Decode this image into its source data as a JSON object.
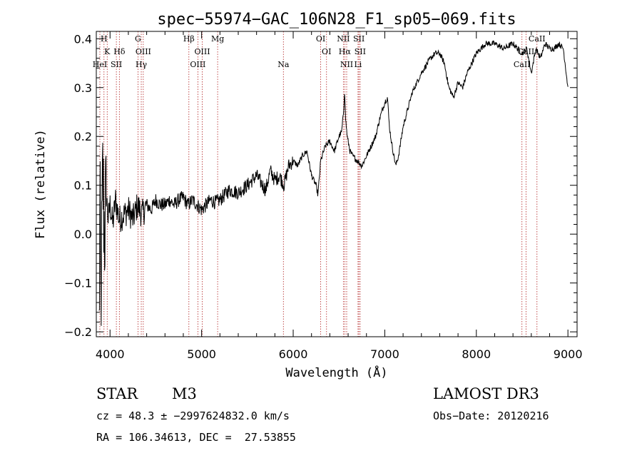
{
  "chart_data": {
    "type": "line",
    "title": "spec−55974−GAC_106N28_F1_sp05−069.fits",
    "xlabel": "Wavelength (Å)",
    "ylabel": "Flux (relative)",
    "xlim": [
      3850,
      9100
    ],
    "ylim": [
      -0.21,
      0.415
    ],
    "xticks": [
      4000,
      5000,
      6000,
      7000,
      8000,
      9000
    ],
    "xtick_labels": [
      "4000",
      "5000",
      "6000",
      "7000",
      "8000",
      "9000"
    ],
    "yticks": [
      -0.2,
      -0.1,
      0.0,
      0.1,
      0.2,
      0.3,
      0.4
    ],
    "ytick_labels": [
      "−0.2",
      "−0.1",
      "0.0",
      "0.1",
      "0.2",
      "0.3",
      "0.4"
    ],
    "series": [
      {
        "name": "flux",
        "color": "#000000",
        "x": [
          3880,
          3890,
          3900,
          3920,
          3940,
          3960,
          3980,
          4000,
          4030,
          4060,
          4100,
          4150,
          4200,
          4250,
          4300,
          4350,
          4400,
          4450,
          4500,
          4550,
          4600,
          4650,
          4700,
          4750,
          4800,
          4850,
          4900,
          4950,
          5000,
          5050,
          5100,
          5150,
          5200,
          5300,
          5400,
          5500,
          5600,
          5700,
          5750,
          5800,
          5850,
          5900,
          5950,
          6000,
          6050,
          6100,
          6150,
          6200,
          6250,
          6270,
          6300,
          6350,
          6400,
          6450,
          6500,
          6530,
          6550,
          6562,
          6570,
          6590,
          6620,
          6650,
          6700,
          6750,
          6800,
          6850,
          6900,
          6950,
          7000,
          7030,
          7050,
          7080,
          7100,
          7120,
          7150,
          7200,
          7300,
          7400,
          7500,
          7550,
          7600,
          7650,
          7700,
          7750,
          7800,
          7850,
          7900,
          8000,
          8100,
          8200,
          8300,
          8400,
          8500,
          8550,
          8600,
          8650,
          8700,
          8750,
          8800,
          8850,
          8900,
          8950,
          9000
        ],
        "values": [
          -0.2,
          0.05,
          -0.15,
          0.12,
          0.0,
          0.08,
          0.03,
          0.06,
          0.02,
          0.07,
          0.03,
          0.04,
          0.05,
          0.03,
          0.06,
          0.04,
          0.06,
          0.05,
          0.07,
          0.06,
          0.06,
          0.07,
          0.06,
          0.07,
          0.075,
          0.06,
          0.07,
          0.06,
          0.05,
          0.06,
          0.07,
          0.065,
          0.07,
          0.09,
          0.085,
          0.1,
          0.12,
          0.09,
          0.13,
          0.11,
          0.12,
          0.1,
          0.14,
          0.15,
          0.14,
          0.16,
          0.17,
          0.12,
          0.1,
          0.08,
          0.15,
          0.18,
          0.19,
          0.17,
          0.2,
          0.21,
          0.25,
          0.3,
          0.24,
          0.2,
          0.17,
          0.16,
          0.15,
          0.14,
          0.16,
          0.18,
          0.2,
          0.24,
          0.27,
          0.28,
          0.22,
          0.18,
          0.16,
          0.14,
          0.16,
          0.22,
          0.29,
          0.33,
          0.36,
          0.37,
          0.37,
          0.35,
          0.3,
          0.28,
          0.31,
          0.3,
          0.33,
          0.37,
          0.39,
          0.39,
          0.38,
          0.39,
          0.37,
          0.38,
          0.33,
          0.38,
          0.36,
          0.39,
          0.38,
          0.38,
          0.39,
          0.38,
          0.3
        ]
      }
    ],
    "spectral_lines": [
      {
        "label": "H",
        "x": 3934,
        "row": 0
      },
      {
        "label": "K",
        "x": 3969,
        "row": 1
      },
      {
        "label": "HeI",
        "x": 3889,
        "row": 2
      },
      {
        "label": "SII",
        "x": 4069,
        "row": 2
      },
      {
        "label": "Hδ",
        "x": 4102,
        "row": 1
      },
      {
        "label": "G",
        "x": 4305,
        "row": 0
      },
      {
        "label": "OIII",
        "x": 4363,
        "row": 1
      },
      {
        "label": "Hγ",
        "x": 4341,
        "row": 2
      },
      {
        "label": "Hβ",
        "x": 4861,
        "row": 0
      },
      {
        "label": "OIII",
        "x": 4959,
        "row": 2
      },
      {
        "label": "OIII",
        "x": 5007,
        "row": 1
      },
      {
        "label": "Mg",
        "x": 5175,
        "row": 0
      },
      {
        "label": "Na",
        "x": 5893,
        "row": 2
      },
      {
        "label": "OI",
        "x": 6300,
        "row": 0
      },
      {
        "label": "OI",
        "x": 6364,
        "row": 1
      },
      {
        "label": "NII",
        "x": 6548,
        "row": 0
      },
      {
        "label": "Hα",
        "x": 6563,
        "row": 1
      },
      {
        "label": "NII",
        "x": 6584,
        "row": 2
      },
      {
        "label": "SII",
        "x": 6717,
        "row": 0
      },
      {
        "label": "SII",
        "x": 6731,
        "row": 1
      },
      {
        "label": "Li",
        "x": 6708,
        "row": 2
      },
      {
        "label": "CaII",
        "x": 8498,
        "row": 2
      },
      {
        "label": "CaII",
        "x": 8542,
        "row": 1
      },
      {
        "label": "CaII",
        "x": 8662,
        "row": 0
      }
    ]
  },
  "info": {
    "object_class": "STAR",
    "subclass": "M3",
    "survey": "LAMOST DR3",
    "cz_line": "cz = 48.3 ± −2997624832.0 km/s",
    "obs_date_line": "Obs−Date: 20120216",
    "radec_line": "RA = 106.34613, DEC =  27.53855"
  },
  "colors": {
    "line_marker": "#b22222",
    "spectrum": "#000000"
  }
}
